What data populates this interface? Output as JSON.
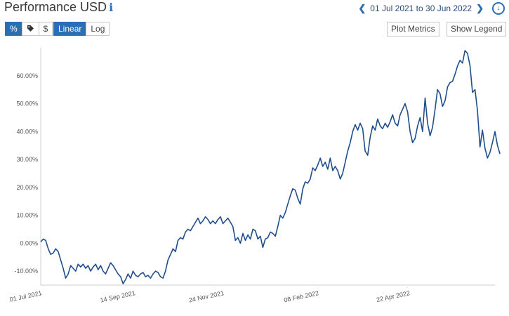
{
  "header": {
    "title": "Performance USD",
    "info_glyph": "i",
    "date_range": "01 Jul 2021 to 30 Jun 2022",
    "prev_icon": "chevron-left-icon",
    "next_icon": "chevron-right-icon",
    "download_icon": "download-icon"
  },
  "toolbar": {
    "percent_label": "%",
    "tag_icon": "tag-icon",
    "dollar_label": "$",
    "linear_label": "Linear",
    "log_label": "Log",
    "plot_metrics_label": "Plot Metrics",
    "show_legend_label": "Show Legend"
  },
  "colors": {
    "accent": "#2a6eb5",
    "line": "#1f4e8c",
    "grid": "#e6e6e6"
  },
  "chart_data": {
    "type": "line",
    "title": "Performance USD",
    "scale": "linear",
    "grid": false,
    "ylim": [
      -15,
      70
    ],
    "yticks": [
      -10,
      0,
      10,
      20,
      30,
      40,
      50,
      60
    ],
    "ytick_labels": [
      "-10.00%",
      "0.00%",
      "10.00%",
      "20.00%",
      "30.00%",
      "40.00%",
      "50.00%",
      "60.00%"
    ],
    "xtick_labels": [
      "01 Jul 2021",
      "14 Sep 2021",
      "24 Nov 2021",
      "08 Feb 2022",
      "22 Apr 2022"
    ],
    "xtick_days": [
      0,
      75,
      146,
      222,
      295
    ],
    "x_start": "01 Jul 2021",
    "x_end": "30 Jun 2022",
    "series": [
      {
        "name": "",
        "points": [
          [
            0,
            0.5
          ],
          [
            2,
            1.5
          ],
          [
            4,
            1
          ],
          [
            6,
            -2
          ],
          [
            8,
            -4
          ],
          [
            10,
            -3.5
          ],
          [
            12,
            -2
          ],
          [
            14,
            -3
          ],
          [
            16,
            -6
          ],
          [
            18,
            -9
          ],
          [
            20,
            -12.5
          ],
          [
            22,
            -11
          ],
          [
            24,
            -8
          ],
          [
            26,
            -9
          ],
          [
            28,
            -10
          ],
          [
            30,
            -7.5
          ],
          [
            32,
            -8.5
          ],
          [
            34,
            -7.5
          ],
          [
            36,
            -9
          ],
          [
            38,
            -8
          ],
          [
            40,
            -10
          ],
          [
            42,
            -8.5
          ],
          [
            44,
            -7.5
          ],
          [
            46,
            -9.5
          ],
          [
            48,
            -8
          ],
          [
            50,
            -10
          ],
          [
            52,
            -11
          ],
          [
            54,
            -9
          ],
          [
            56,
            -7
          ],
          [
            58,
            -8
          ],
          [
            60,
            -9.5
          ],
          [
            62,
            -11
          ],
          [
            64,
            -12
          ],
          [
            66,
            -14.5
          ],
          [
            68,
            -13
          ],
          [
            70,
            -11
          ],
          [
            72,
            -12.5
          ],
          [
            74,
            -10
          ],
          [
            76,
            -11.5
          ],
          [
            78,
            -12
          ],
          [
            80,
            -11
          ],
          [
            82,
            -10.5
          ],
          [
            84,
            -12
          ],
          [
            86,
            -11.5
          ],
          [
            88,
            -12.5
          ],
          [
            90,
            -11
          ],
          [
            92,
            -10
          ],
          [
            94,
            -10.5
          ],
          [
            96,
            -12
          ],
          [
            98,
            -12.5
          ],
          [
            100,
            -10
          ],
          [
            102,
            -6
          ],
          [
            104,
            -4
          ],
          [
            106,
            -2
          ],
          [
            108,
            -3
          ],
          [
            110,
            1
          ],
          [
            112,
            2
          ],
          [
            114,
            1.5
          ],
          [
            116,
            4
          ],
          [
            118,
            5
          ],
          [
            120,
            4.5
          ],
          [
            122,
            6
          ],
          [
            124,
            7.5
          ],
          [
            126,
            9
          ],
          [
            128,
            7
          ],
          [
            130,
            8
          ],
          [
            132,
            9.5
          ],
          [
            134,
            8.5
          ],
          [
            136,
            7
          ],
          [
            138,
            8
          ],
          [
            140,
            7
          ],
          [
            142,
            8.5
          ],
          [
            144,
            9.5
          ],
          [
            146,
            7
          ],
          [
            148,
            8
          ],
          [
            150,
            9
          ],
          [
            152,
            7.5
          ],
          [
            154,
            6
          ],
          [
            156,
            1
          ],
          [
            158,
            2
          ],
          [
            160,
            0
          ],
          [
            162,
            3.5
          ],
          [
            164,
            1
          ],
          [
            166,
            3
          ],
          [
            168,
            1.5
          ],
          [
            170,
            5
          ],
          [
            172,
            4.5
          ],
          [
            174,
            1.5
          ],
          [
            176,
            2.5
          ],
          [
            178,
            -1.5
          ],
          [
            180,
            1.5
          ],
          [
            182,
            2
          ],
          [
            184,
            4
          ],
          [
            186,
            3.5
          ],
          [
            188,
            2.5
          ],
          [
            190,
            6
          ],
          [
            192,
            10
          ],
          [
            194,
            9
          ],
          [
            196,
            11
          ],
          [
            198,
            14
          ],
          [
            200,
            17
          ],
          [
            202,
            19.5
          ],
          [
            204,
            19
          ],
          [
            206,
            16
          ],
          [
            208,
            14
          ],
          [
            210,
            19.5
          ],
          [
            212,
            22
          ],
          [
            214,
            21.5
          ],
          [
            216,
            23
          ],
          [
            218,
            27
          ],
          [
            220,
            26
          ],
          [
            222,
            28
          ],
          [
            224,
            30.5
          ],
          [
            226,
            27.5
          ],
          [
            228,
            29
          ],
          [
            230,
            26.5
          ],
          [
            232,
            30.5
          ],
          [
            234,
            26
          ],
          [
            236,
            27.5
          ],
          [
            238,
            26
          ],
          [
            240,
            23
          ],
          [
            242,
            25
          ],
          [
            244,
            29
          ],
          [
            246,
            33
          ],
          [
            248,
            36
          ],
          [
            250,
            40
          ],
          [
            252,
            42.5
          ],
          [
            254,
            40.5
          ],
          [
            256,
            43
          ],
          [
            258,
            41
          ],
          [
            260,
            33
          ],
          [
            262,
            31.5
          ],
          [
            264,
            38
          ],
          [
            266,
            42
          ],
          [
            268,
            40.5
          ],
          [
            270,
            44.5
          ],
          [
            272,
            42
          ],
          [
            274,
            41
          ],
          [
            276,
            43
          ],
          [
            278,
            41.5
          ],
          [
            280,
            43.5
          ],
          [
            282,
            46
          ],
          [
            284,
            43
          ],
          [
            286,
            42
          ],
          [
            288,
            46
          ],
          [
            290,
            48
          ],
          [
            292,
            50
          ],
          [
            294,
            47
          ],
          [
            296,
            40
          ],
          [
            298,
            36
          ],
          [
            300,
            37.5
          ],
          [
            302,
            42
          ],
          [
            304,
            45
          ],
          [
            306,
            40
          ],
          [
            308,
            52
          ],
          [
            310,
            43
          ],
          [
            312,
            38.5
          ],
          [
            314,
            41.5
          ],
          [
            316,
            48
          ],
          [
            318,
            55
          ],
          [
            320,
            53.5
          ],
          [
            322,
            49
          ],
          [
            324,
            51
          ],
          [
            326,
            56
          ],
          [
            328,
            57.5
          ],
          [
            330,
            58
          ],
          [
            332,
            60.5
          ],
          [
            334,
            63.5
          ],
          [
            336,
            65.5
          ],
          [
            338,
            64.5
          ],
          [
            340,
            69
          ],
          [
            342,
            68
          ],
          [
            344,
            63.5
          ],
          [
            346,
            54
          ],
          [
            348,
            55
          ],
          [
            350,
            47.5
          ],
          [
            352,
            34.5
          ],
          [
            354,
            40.5
          ],
          [
            356,
            34
          ],
          [
            358,
            30.5
          ],
          [
            360,
            32.5
          ],
          [
            362,
            36
          ],
          [
            364,
            40
          ],
          [
            366,
            35
          ],
          [
            368,
            32
          ]
        ]
      }
    ]
  }
}
